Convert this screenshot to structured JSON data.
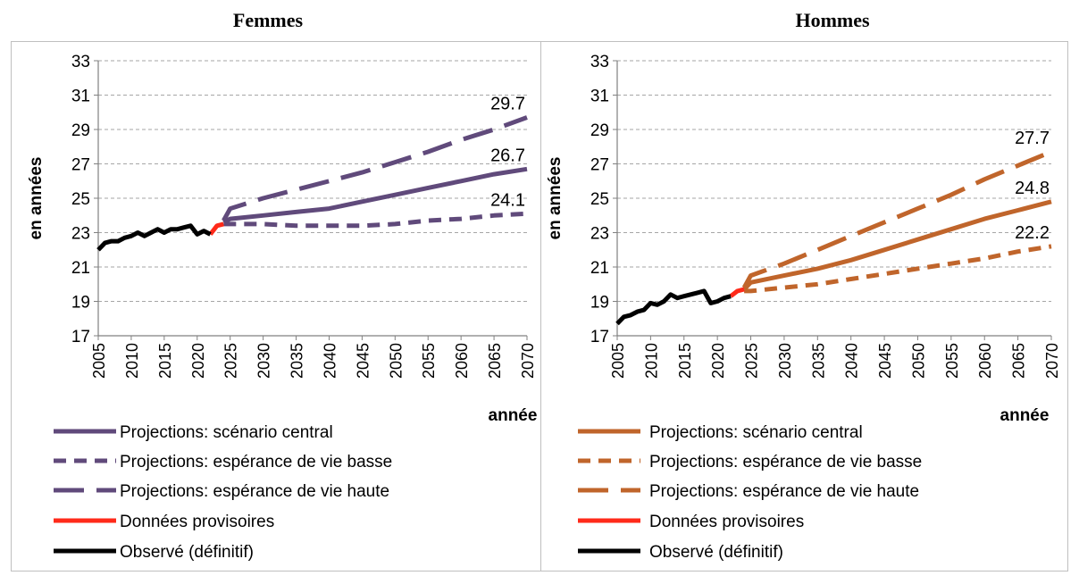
{
  "chart_data": [
    {
      "type": "line",
      "title": "Femmes",
      "ylabel": "en années",
      "xlabel": "année",
      "xlim": [
        2005,
        2070
      ],
      "ylim": [
        17,
        33
      ],
      "yticks": [
        17,
        19,
        21,
        23,
        25,
        27,
        29,
        31,
        33
      ],
      "xticks": [
        2005,
        2010,
        2015,
        2020,
        2025,
        2030,
        2035,
        2040,
        2045,
        2050,
        2055,
        2060,
        2065,
        2070
      ],
      "grid": true,
      "colors": {
        "projection": "#604a7b",
        "provisional": "#ff2a1a",
        "observed": "#000000"
      },
      "series": [
        {
          "key": "central",
          "name": "Projections: scénario central",
          "style": "solid",
          "x": [
            2024,
            2025,
            2030,
            2035,
            2040,
            2045,
            2050,
            2055,
            2060,
            2065,
            2070
          ],
          "y": [
            23.6,
            23.8,
            24.0,
            24.2,
            24.4,
            24.8,
            25.2,
            25.6,
            26.0,
            26.4,
            26.7
          ]
        },
        {
          "key": "low",
          "name": "Projections: espérance de vie basse",
          "style": "dashed",
          "x": [
            2024,
            2025,
            2030,
            2035,
            2040,
            2045,
            2050,
            2055,
            2060,
            2065,
            2070
          ],
          "y": [
            23.5,
            23.5,
            23.5,
            23.4,
            23.4,
            23.4,
            23.5,
            23.7,
            23.8,
            24.0,
            24.1
          ]
        },
        {
          "key": "high",
          "name": "Projections: espérance de vie haute",
          "style": "longdash",
          "x": [
            2024,
            2025,
            2030,
            2035,
            2040,
            2045,
            2050,
            2055,
            2060,
            2065,
            2070
          ],
          "y": [
            23.7,
            24.4,
            25.0,
            25.5,
            26.0,
            26.5,
            27.1,
            27.7,
            28.4,
            29.0,
            29.7
          ]
        },
        {
          "key": "provisional",
          "name": "Données provisoires",
          "style": "solid",
          "x": [
            2022,
            2023,
            2024
          ],
          "y": [
            22.9,
            23.4,
            23.5
          ]
        },
        {
          "key": "observed",
          "name": "Observé (définitif)",
          "style": "solid",
          "x": [
            2005,
            2006,
            2007,
            2008,
            2009,
            2010,
            2011,
            2012,
            2013,
            2014,
            2015,
            2016,
            2017,
            2018,
            2019,
            2020,
            2021,
            2022
          ],
          "y": [
            22.0,
            22.4,
            22.5,
            22.5,
            22.7,
            22.8,
            23.0,
            22.8,
            23.0,
            23.2,
            23.0,
            23.2,
            23.2,
            23.3,
            23.4,
            22.9,
            23.1,
            22.9
          ]
        }
      ],
      "end_labels": [
        {
          "series": "high",
          "text": "29.7"
        },
        {
          "series": "central",
          "text": "26.7"
        },
        {
          "series": "low",
          "text": "24.1"
        }
      ]
    },
    {
      "type": "line",
      "title": "Hommes",
      "ylabel": "en années",
      "xlabel": "année",
      "xlim": [
        2005,
        2070
      ],
      "ylim": [
        17,
        33
      ],
      "yticks": [
        17,
        19,
        21,
        23,
        25,
        27,
        29,
        31,
        33
      ],
      "xticks": [
        2005,
        2010,
        2015,
        2020,
        2025,
        2030,
        2035,
        2040,
        2045,
        2050,
        2055,
        2060,
        2065,
        2070
      ],
      "grid": true,
      "colors": {
        "projection": "#c0652b",
        "provisional": "#ff2a1a",
        "observed": "#000000"
      },
      "series": [
        {
          "key": "central",
          "name": "Projections: scénario central",
          "style": "solid",
          "x": [
            2024,
            2025,
            2030,
            2035,
            2040,
            2045,
            2050,
            2055,
            2060,
            2065,
            2070
          ],
          "y": [
            19.7,
            20.1,
            20.5,
            20.9,
            21.4,
            22.0,
            22.6,
            23.2,
            23.8,
            24.3,
            24.8
          ]
        },
        {
          "key": "low",
          "name": "Projections: espérance de vie basse",
          "style": "dashed",
          "x": [
            2024,
            2025,
            2030,
            2035,
            2040,
            2045,
            2050,
            2055,
            2060,
            2065,
            2070
          ],
          "y": [
            19.6,
            19.6,
            19.8,
            20.0,
            20.3,
            20.6,
            20.9,
            21.2,
            21.5,
            21.9,
            22.2
          ]
        },
        {
          "key": "high",
          "name": "Projections: espérance de vie haute",
          "style": "longdash",
          "x": [
            2024,
            2025,
            2030,
            2035,
            2040,
            2045,
            2050,
            2055,
            2060,
            2065,
            2070
          ],
          "y": [
            19.8,
            20.5,
            21.2,
            22.0,
            22.8,
            23.6,
            24.4,
            25.2,
            26.1,
            26.9,
            27.7
          ]
        },
        {
          "key": "provisional",
          "name": "Données provisoires",
          "style": "solid",
          "x": [
            2022,
            2023,
            2024
          ],
          "y": [
            19.3,
            19.6,
            19.7
          ]
        },
        {
          "key": "observed",
          "name": "Observé (définitif)",
          "style": "solid",
          "x": [
            2005,
            2006,
            2007,
            2008,
            2009,
            2010,
            2011,
            2012,
            2013,
            2014,
            2015,
            2016,
            2017,
            2018,
            2019,
            2020,
            2021,
            2022
          ],
          "y": [
            17.7,
            18.1,
            18.2,
            18.4,
            18.5,
            18.9,
            18.8,
            19.0,
            19.4,
            19.2,
            19.3,
            19.4,
            19.5,
            19.6,
            18.9,
            19.0,
            19.2,
            19.3
          ]
        }
      ],
      "end_labels": [
        {
          "series": "high",
          "text": "27.7"
        },
        {
          "series": "central",
          "text": "24.8"
        },
        {
          "series": "low",
          "text": "22.2"
        }
      ]
    }
  ]
}
